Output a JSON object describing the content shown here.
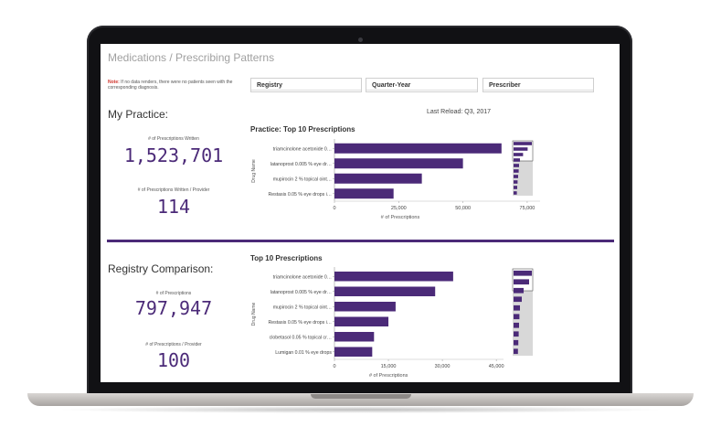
{
  "page": {
    "title": "Medications / Prescribing Patterns",
    "note_label": "Note:",
    "note_text": " If no data renders, there were no patients seen with the corresponding diagnosis.",
    "last_reload": "Last Reload: Q3, 2017"
  },
  "filters": [
    {
      "label": "Registry"
    },
    {
      "label": "Quarter-Year"
    },
    {
      "label": "Prescriber"
    }
  ],
  "practice": {
    "section_title": "My Practice:",
    "kpi1_label": "# of Prescriptions Written",
    "kpi1_value": "1,523,701",
    "kpi2_label": "# of Prescriptions Written / Provider",
    "kpi2_value": "114",
    "chart_title": "Practice: Top 10 Prescriptions"
  },
  "registry": {
    "section_title": "Registry Comparison:",
    "kpi1_label": "# of Prescriptions",
    "kpi1_value": "797,947",
    "kpi2_label": "# of Prescriptions / Provider",
    "kpi2_value": "100",
    "chart_title": "Top 10 Prescriptions"
  },
  "colors": {
    "bar": "#4b2a78",
    "accent": "#4b2a78",
    "note_label": "#d0342c"
  },
  "chart_data": [
    {
      "type": "bar",
      "orientation": "horizontal",
      "title": "Practice: Top 10 Prescriptions",
      "xlabel": "# of Prescriptions",
      "ylabel": "Drug Name",
      "categories": [
        "triamcinolone acetonide 0…",
        "latanoprost 0.005 % eye dr…",
        "mupirocin 2 % topical oint…",
        "Restasis 0.05 % eye drops i…"
      ],
      "values": [
        65000,
        50000,
        34000,
        23000
      ],
      "xlim": [
        0,
        80000
      ],
      "xticks": [
        "0",
        "25,000",
        "50,000",
        "75,000"
      ],
      "xtick_values": [
        0,
        25000,
        50000,
        75000
      ],
      "minimap_values": [
        1.0,
        0.77,
        0.52,
        0.35,
        0.3,
        0.28,
        0.25,
        0.22,
        0.2,
        0.18
      ]
    },
    {
      "type": "bar",
      "orientation": "horizontal",
      "title": "Top 10 Prescriptions",
      "xlabel": "# of Prescriptions",
      "ylabel": "Drug Name",
      "categories": [
        "triamcinolone acetonide 0…",
        "latanoprost 0.005 % eye dr…",
        "mupirocin 2 % topical oint…",
        "Restasis 0.05 % eye drops i…",
        "clobetasol 0.05 % topical cr…",
        "Lumigan 0.01 % eye drops"
      ],
      "values": [
        33000,
        28000,
        17000,
        15000,
        11000,
        10500
      ],
      "xlim": [
        0,
        47000
      ],
      "xticks": [
        "0",
        "15,000",
        "30,000",
        "45,000"
      ],
      "xtick_values": [
        0,
        15000,
        30000,
        45000
      ],
      "minimap_values": [
        1.0,
        0.85,
        0.55,
        0.45,
        0.35,
        0.32,
        0.3,
        0.28,
        0.26,
        0.24
      ]
    }
  ]
}
